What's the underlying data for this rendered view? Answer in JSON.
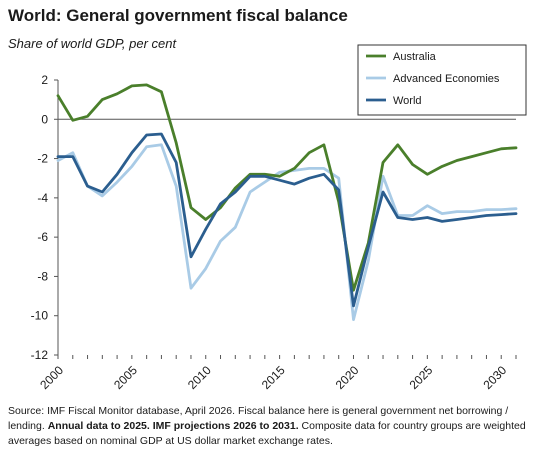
{
  "header": {
    "title": "World: General government fiscal balance",
    "subtitle": "Share of world GDP, per cent"
  },
  "source": {
    "part1": "Source: IMF Fiscal Monitor database, April 2026.  Fiscal balance here is general government net borrowing / lending. ",
    "bold": "Annual data to 2025. IMF projections 2026 to 2031.",
    "part2": " Composite data for country groups are weighted averages based on nominal GDP at US dollar market exchange rates."
  },
  "colors": {
    "australia": "#4a7f2b",
    "advanced": "#a9cbe6",
    "world": "#2b5e8f"
  },
  "chart_data": {
    "type": "line",
    "title": "World: General government fiscal balance",
    "subtitle": "Share of world GDP, per cent",
    "ylim": [
      -12,
      2
    ],
    "yticks": [
      2,
      0,
      -2,
      -4,
      -6,
      -8,
      -10,
      -12
    ],
    "xlim": [
      2000,
      2031
    ],
    "xticks": [
      2000,
      2005,
      2010,
      2015,
      2020,
      2025,
      2030
    ],
    "legend_position": "top-right",
    "x": [
      2000,
      2001,
      2002,
      2003,
      2004,
      2005,
      2006,
      2007,
      2008,
      2009,
      2010,
      2011,
      2012,
      2013,
      2014,
      2015,
      2016,
      2017,
      2018,
      2019,
      2020,
      2021,
      2022,
      2023,
      2024,
      2025,
      2026,
      2027,
      2028,
      2029,
      2030,
      2031
    ],
    "series": [
      {
        "name": "Australia",
        "color": "#4a7f2b",
        "values": [
          1.2,
          -0.05,
          0.15,
          1.0,
          1.3,
          1.7,
          1.75,
          1.4,
          -1.2,
          -4.5,
          -5.1,
          -4.5,
          -3.5,
          -2.8,
          -2.8,
          -2.9,
          -2.5,
          -1.7,
          -1.3,
          -4.2,
          -8.7,
          -6.3,
          -2.2,
          -1.3,
          -2.3,
          -2.8,
          -2.4,
          -2.1,
          -1.9,
          -1.7,
          -1.5,
          -1.45
        ]
      },
      {
        "name": "Advanced Economies",
        "color": "#a9cbe6",
        "values": [
          -2.1,
          -1.7,
          -3.4,
          -3.9,
          -3.2,
          -2.4,
          -1.4,
          -1.3,
          -3.4,
          -8.6,
          -7.6,
          -6.2,
          -5.5,
          -3.7,
          -3.2,
          -2.7,
          -2.6,
          -2.5,
          -2.5,
          -3.0,
          -10.2,
          -7.2,
          -2.9,
          -4.9,
          -4.9,
          -4.4,
          -4.8,
          -4.7,
          -4.7,
          -4.6,
          -4.6,
          -4.55
        ]
      },
      {
        "name": "World",
        "color": "#2b5e8f",
        "values": [
          -1.9,
          -1.9,
          -3.4,
          -3.7,
          -2.8,
          -1.7,
          -0.8,
          -0.75,
          -2.2,
          -7.0,
          -5.6,
          -4.3,
          -3.7,
          -2.9,
          -2.9,
          -3.1,
          -3.3,
          -3.0,
          -2.8,
          -3.6,
          -9.5,
          -6.5,
          -3.7,
          -5.0,
          -5.1,
          -5.0,
          -5.2,
          -5.1,
          -5.0,
          -4.9,
          -4.85,
          -4.8
        ]
      }
    ]
  }
}
